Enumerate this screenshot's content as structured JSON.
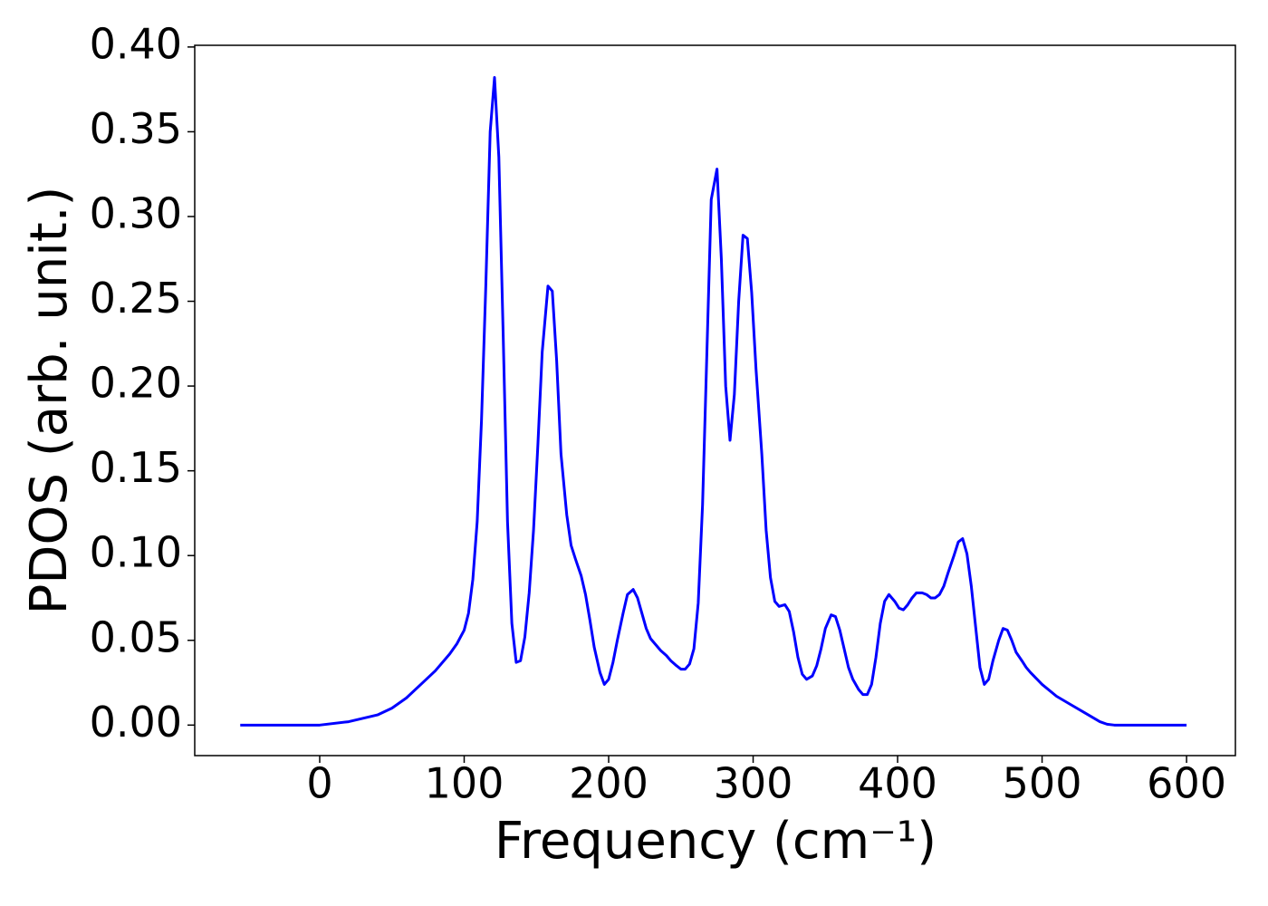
{
  "chart_data": {
    "type": "line",
    "xlabel": "Frequency (cm⁻¹)",
    "ylabel": "PDOS (arb. unit.)",
    "x": [
      -55,
      0,
      20,
      40,
      50,
      60,
      70,
      80,
      90,
      95,
      100,
      103,
      106,
      109,
      112,
      115,
      118,
      121,
      124,
      127,
      130,
      133,
      136,
      139,
      142,
      145,
      148,
      151,
      154,
      158,
      161,
      164,
      167,
      171,
      174,
      177,
      181,
      184,
      187,
      190,
      194,
      197,
      200,
      203,
      206,
      210,
      213,
      217,
      220,
      223,
      226,
      229,
      233,
      236,
      240,
      243,
      247,
      250,
      253,
      256,
      259,
      262,
      265,
      268,
      271,
      275,
      278,
      281,
      284,
      287,
      290,
      293,
      296,
      299,
      302,
      306,
      309,
      312,
      315,
      318,
      322,
      325,
      328,
      331,
      334,
      337,
      341,
      344,
      347,
      350,
      354,
      357,
      360,
      363,
      366,
      369,
      373,
      376,
      379,
      382,
      385,
      388,
      391,
      394,
      398,
      401,
      404,
      407,
      410,
      413,
      417,
      420,
      423,
      426,
      429,
      432,
      435,
      439,
      442,
      445,
      448,
      451,
      454,
      457,
      460,
      463,
      466,
      470,
      473,
      476,
      479,
      482,
      486,
      489,
      492,
      500,
      510,
      520,
      530,
      540,
      545,
      550,
      600
    ],
    "series": [
      {
        "color": "#0000ff",
        "values": [
          0,
          0,
          0.002,
          0.006,
          0.01,
          0.016,
          0.024,
          0.032,
          0.042,
          0.048,
          0.056,
          0.066,
          0.086,
          0.12,
          0.18,
          0.26,
          0.35,
          0.382,
          0.335,
          0.23,
          0.12,
          0.06,
          0.037,
          0.038,
          0.052,
          0.078,
          0.115,
          0.165,
          0.22,
          0.259,
          0.256,
          0.215,
          0.16,
          0.124,
          0.106,
          0.098,
          0.088,
          0.077,
          0.062,
          0.046,
          0.031,
          0.024,
          0.027,
          0.037,
          0.05,
          0.066,
          0.077,
          0.08,
          0.075,
          0.066,
          0.057,
          0.051,
          0.047,
          0.044,
          0.041,
          0.038,
          0.035,
          0.033,
          0.033,
          0.036,
          0.045,
          0.072,
          0.13,
          0.22,
          0.31,
          0.328,
          0.275,
          0.2,
          0.168,
          0.195,
          0.25,
          0.289,
          0.287,
          0.255,
          0.21,
          0.16,
          0.115,
          0.087,
          0.073,
          0.07,
          0.071,
          0.067,
          0.055,
          0.04,
          0.03,
          0.027,
          0.029,
          0.035,
          0.045,
          0.057,
          0.065,
          0.064,
          0.056,
          0.045,
          0.034,
          0.027,
          0.021,
          0.018,
          0.018,
          0.024,
          0.04,
          0.06,
          0.073,
          0.077,
          0.073,
          0.069,
          0.068,
          0.071,
          0.075,
          0.078,
          0.078,
          0.077,
          0.075,
          0.075,
          0.077,
          0.082,
          0.09,
          0.1,
          0.108,
          0.11,
          0.101,
          0.082,
          0.058,
          0.034,
          0.024,
          0.027,
          0.038,
          0.05,
          0.057,
          0.056,
          0.05,
          0.043,
          0.038,
          0.034,
          0.031,
          0.024,
          0.017,
          0.012,
          0.007,
          0.002,
          0.0005,
          0,
          0
        ]
      }
    ],
    "xlim": [
      -86.5,
      633.8
    ],
    "ylim": [
      -0.018,
      0.401
    ],
    "xticks": [
      0,
      100,
      200,
      300,
      400,
      500,
      600
    ],
    "yticks": [
      {
        "value": 0,
        "label": "0.00"
      },
      {
        "value": 0.05,
        "label": "0.05"
      },
      {
        "value": 0.1,
        "label": "0.10"
      },
      {
        "value": 0.15,
        "label": "0.15"
      },
      {
        "value": 0.2,
        "label": "0.20"
      },
      {
        "value": 0.25,
        "label": "0.25"
      },
      {
        "value": 0.3,
        "label": "0.30"
      },
      {
        "value": 0.35,
        "label": "0.35"
      },
      {
        "value": 0.4,
        "label": "0.40"
      }
    ],
    "grid": false
  }
}
